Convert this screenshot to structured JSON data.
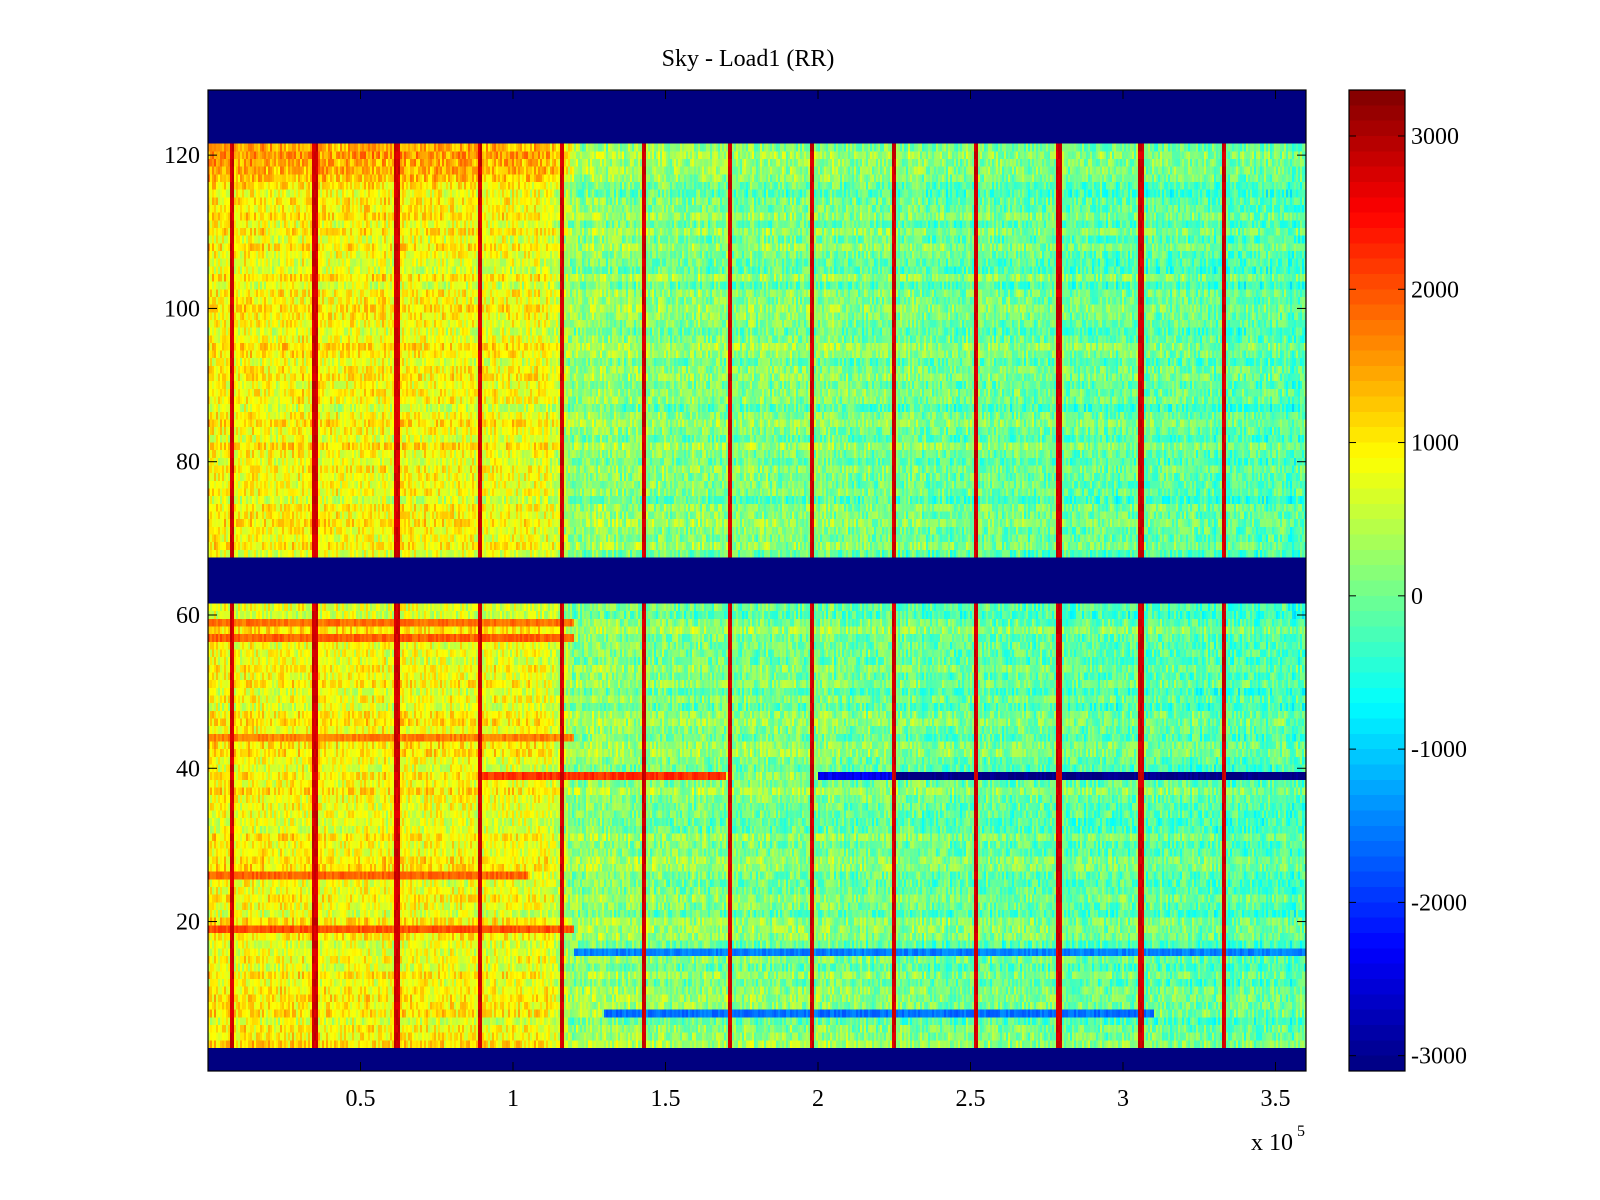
{
  "chart_data": {
    "type": "heatmap",
    "title": "Sky - Load1 (RR)",
    "xlabel": "",
    "ylabel": "",
    "x_multiplier_label": "x 10",
    "x_multiplier_exponent": "5",
    "xlim": [
      0,
      3.6
    ],
    "ylim": [
      0.5,
      128.5
    ],
    "x_ticks": [
      0.5,
      1,
      1.5,
      2,
      2.5,
      3,
      3.5
    ],
    "x_tick_labels": [
      "0.5",
      "1",
      "1.5",
      "2",
      "2.5",
      "3",
      "3.5"
    ],
    "y_ticks": [
      20,
      40,
      60,
      80,
      100,
      120
    ],
    "y_tick_labels": [
      "20",
      "40",
      "60",
      "80",
      "100",
      "120"
    ],
    "colormap": "jet",
    "colorbar": {
      "range": [
        -3100,
        3300
      ],
      "ticks": [
        3000,
        2000,
        1000,
        0,
        -1000,
        -2000,
        -3000
      ],
      "tick_labels": [
        "3000",
        "2000",
        "1000",
        "0",
        "-1000",
        "-2000",
        "-3000"
      ]
    },
    "masked_row_bands": [
      {
        "from": 0.5,
        "to": 3.5,
        "value": -3100
      },
      {
        "from": 61.5,
        "to": 67.5,
        "value": -3100
      },
      {
        "from": 121.5,
        "to": 128.5,
        "value": -3100
      }
    ],
    "baseline_trend": [
      {
        "x": 0.0,
        "value": 900
      },
      {
        "x": 1.1,
        "value": 800
      },
      {
        "x": 1.2,
        "value": 200
      },
      {
        "x": 3.6,
        "value": -200
      }
    ],
    "spike_columns_x": [
      0.08,
      0.35,
      0.62,
      0.89,
      1.16,
      1.43,
      1.71,
      1.98,
      2.25,
      2.52,
      2.79,
      3.06,
      3.33
    ],
    "spike_value": 2800,
    "anomalous_rows": [
      {
        "row": 39,
        "x_from": 0.9,
        "x_to": 1.7,
        "value": 2200
      },
      {
        "row": 39,
        "x_from": 2.0,
        "x_to": 2.25,
        "value": -2400
      },
      {
        "row": 39,
        "x_from": 2.25,
        "x_to": 3.6,
        "value": -3100
      },
      {
        "row": 19,
        "x_from": 0.0,
        "x_to": 1.2,
        "value": 2000
      },
      {
        "row": 26,
        "x_from": 0.0,
        "x_to": 1.05,
        "value": 1900
      },
      {
        "row": 44,
        "x_from": 0.0,
        "x_to": 1.2,
        "value": 1700
      },
      {
        "row": 57,
        "x_from": 0.0,
        "x_to": 1.2,
        "value": 1900
      },
      {
        "row": 59,
        "x_from": 0.0,
        "x_to": 1.2,
        "value": 1800
      },
      {
        "row": 8,
        "x_from": 1.3,
        "x_to": 3.1,
        "value": -1600
      },
      {
        "row": 16,
        "x_from": 1.2,
        "x_to": 3.6,
        "value": -1500
      }
    ]
  }
}
